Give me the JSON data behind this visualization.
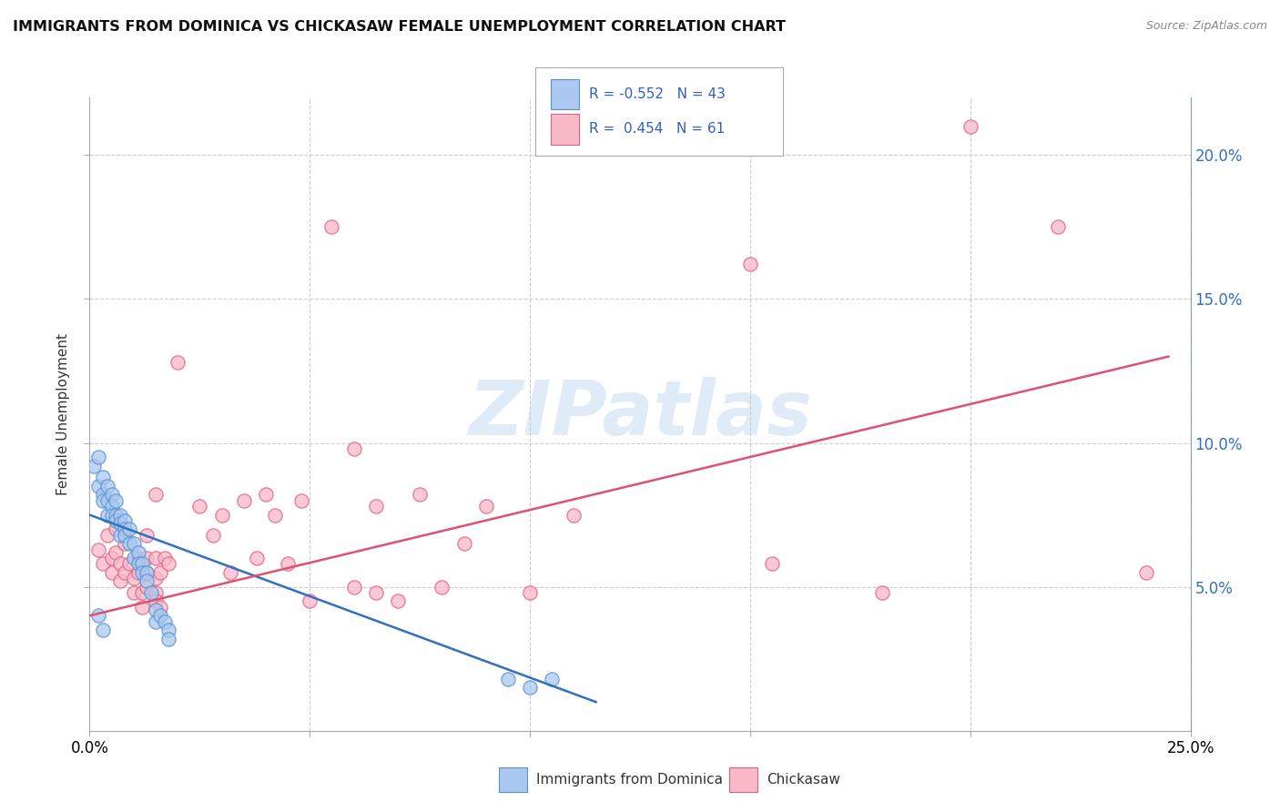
{
  "title": "IMMIGRANTS FROM DOMINICA VS CHICKASAW FEMALE UNEMPLOYMENT CORRELATION CHART",
  "source": "Source: ZipAtlas.com",
  "ylabel": "Female Unemployment",
  "xlim": [
    0.0,
    0.25
  ],
  "ylim": [
    0.0,
    0.22
  ],
  "legend_label1": "Immigrants from Dominica",
  "legend_label2": "Chickasaw",
  "blue_color": "#aac8f0",
  "blue_edge_color": "#5590d0",
  "pink_color": "#f8b8c8",
  "pink_edge_color": "#e06080",
  "blue_line_color": "#3070c0",
  "pink_line_color": "#e05070",
  "watermark": "ZIPatlas",
  "blue_scatter": [
    [
      0.001,
      0.092
    ],
    [
      0.002,
      0.095
    ],
    [
      0.002,
      0.085
    ],
    [
      0.003,
      0.088
    ],
    [
      0.003,
      0.082
    ],
    [
      0.003,
      0.08
    ],
    [
      0.004,
      0.085
    ],
    [
      0.004,
      0.08
    ],
    [
      0.004,
      0.075
    ],
    [
      0.005,
      0.082
    ],
    [
      0.005,
      0.078
    ],
    [
      0.005,
      0.075
    ],
    [
      0.006,
      0.08
    ],
    [
      0.006,
      0.075
    ],
    [
      0.006,
      0.073
    ],
    [
      0.007,
      0.075
    ],
    [
      0.007,
      0.072
    ],
    [
      0.007,
      0.068
    ],
    [
      0.008,
      0.073
    ],
    [
      0.008,
      0.07
    ],
    [
      0.008,
      0.068
    ],
    [
      0.009,
      0.07
    ],
    [
      0.009,
      0.065
    ],
    [
      0.01,
      0.065
    ],
    [
      0.01,
      0.06
    ],
    [
      0.011,
      0.062
    ],
    [
      0.011,
      0.058
    ],
    [
      0.012,
      0.058
    ],
    [
      0.012,
      0.055
    ],
    [
      0.013,
      0.055
    ],
    [
      0.013,
      0.052
    ],
    [
      0.014,
      0.048
    ],
    [
      0.015,
      0.042
    ],
    [
      0.015,
      0.038
    ],
    [
      0.016,
      0.04
    ],
    [
      0.017,
      0.038
    ],
    [
      0.018,
      0.035
    ],
    [
      0.018,
      0.032
    ],
    [
      0.095,
      0.018
    ],
    [
      0.1,
      0.015
    ],
    [
      0.105,
      0.018
    ],
    [
      0.002,
      0.04
    ],
    [
      0.003,
      0.035
    ]
  ],
  "pink_scatter": [
    [
      0.002,
      0.063
    ],
    [
      0.003,
      0.058
    ],
    [
      0.004,
      0.068
    ],
    [
      0.005,
      0.06
    ],
    [
      0.005,
      0.055
    ],
    [
      0.006,
      0.07
    ],
    [
      0.006,
      0.062
    ],
    [
      0.007,
      0.058
    ],
    [
      0.007,
      0.052
    ],
    [
      0.008,
      0.065
    ],
    [
      0.008,
      0.055
    ],
    [
      0.009,
      0.058
    ],
    [
      0.01,
      0.053
    ],
    [
      0.01,
      0.048
    ],
    [
      0.011,
      0.06
    ],
    [
      0.011,
      0.055
    ],
    [
      0.012,
      0.048
    ],
    [
      0.012,
      0.043
    ],
    [
      0.013,
      0.068
    ],
    [
      0.013,
      0.06
    ],
    [
      0.013,
      0.055
    ],
    [
      0.013,
      0.05
    ],
    [
      0.015,
      0.082
    ],
    [
      0.015,
      0.06
    ],
    [
      0.015,
      0.053
    ],
    [
      0.015,
      0.048
    ],
    [
      0.015,
      0.045
    ],
    [
      0.016,
      0.043
    ],
    [
      0.016,
      0.055
    ],
    [
      0.017,
      0.06
    ],
    [
      0.018,
      0.058
    ],
    [
      0.02,
      0.128
    ],
    [
      0.025,
      0.078
    ],
    [
      0.028,
      0.068
    ],
    [
      0.03,
      0.075
    ],
    [
      0.032,
      0.055
    ],
    [
      0.035,
      0.08
    ],
    [
      0.038,
      0.06
    ],
    [
      0.04,
      0.082
    ],
    [
      0.042,
      0.075
    ],
    [
      0.045,
      0.058
    ],
    [
      0.048,
      0.08
    ],
    [
      0.05,
      0.045
    ],
    [
      0.055,
      0.175
    ],
    [
      0.06,
      0.098
    ],
    [
      0.06,
      0.05
    ],
    [
      0.065,
      0.078
    ],
    [
      0.065,
      0.048
    ],
    [
      0.07,
      0.045
    ],
    [
      0.075,
      0.082
    ],
    [
      0.08,
      0.05
    ],
    [
      0.085,
      0.065
    ],
    [
      0.09,
      0.078
    ],
    [
      0.1,
      0.048
    ],
    [
      0.11,
      0.075
    ],
    [
      0.15,
      0.162
    ],
    [
      0.155,
      0.058
    ],
    [
      0.18,
      0.048
    ],
    [
      0.2,
      0.21
    ],
    [
      0.22,
      0.175
    ],
    [
      0.24,
      0.055
    ]
  ],
  "blue_line_x": [
    0.0,
    0.115
  ],
  "blue_line_y": [
    0.075,
    0.01
  ],
  "pink_line_x": [
    0.0,
    0.245
  ],
  "pink_line_y": [
    0.04,
    0.13
  ]
}
